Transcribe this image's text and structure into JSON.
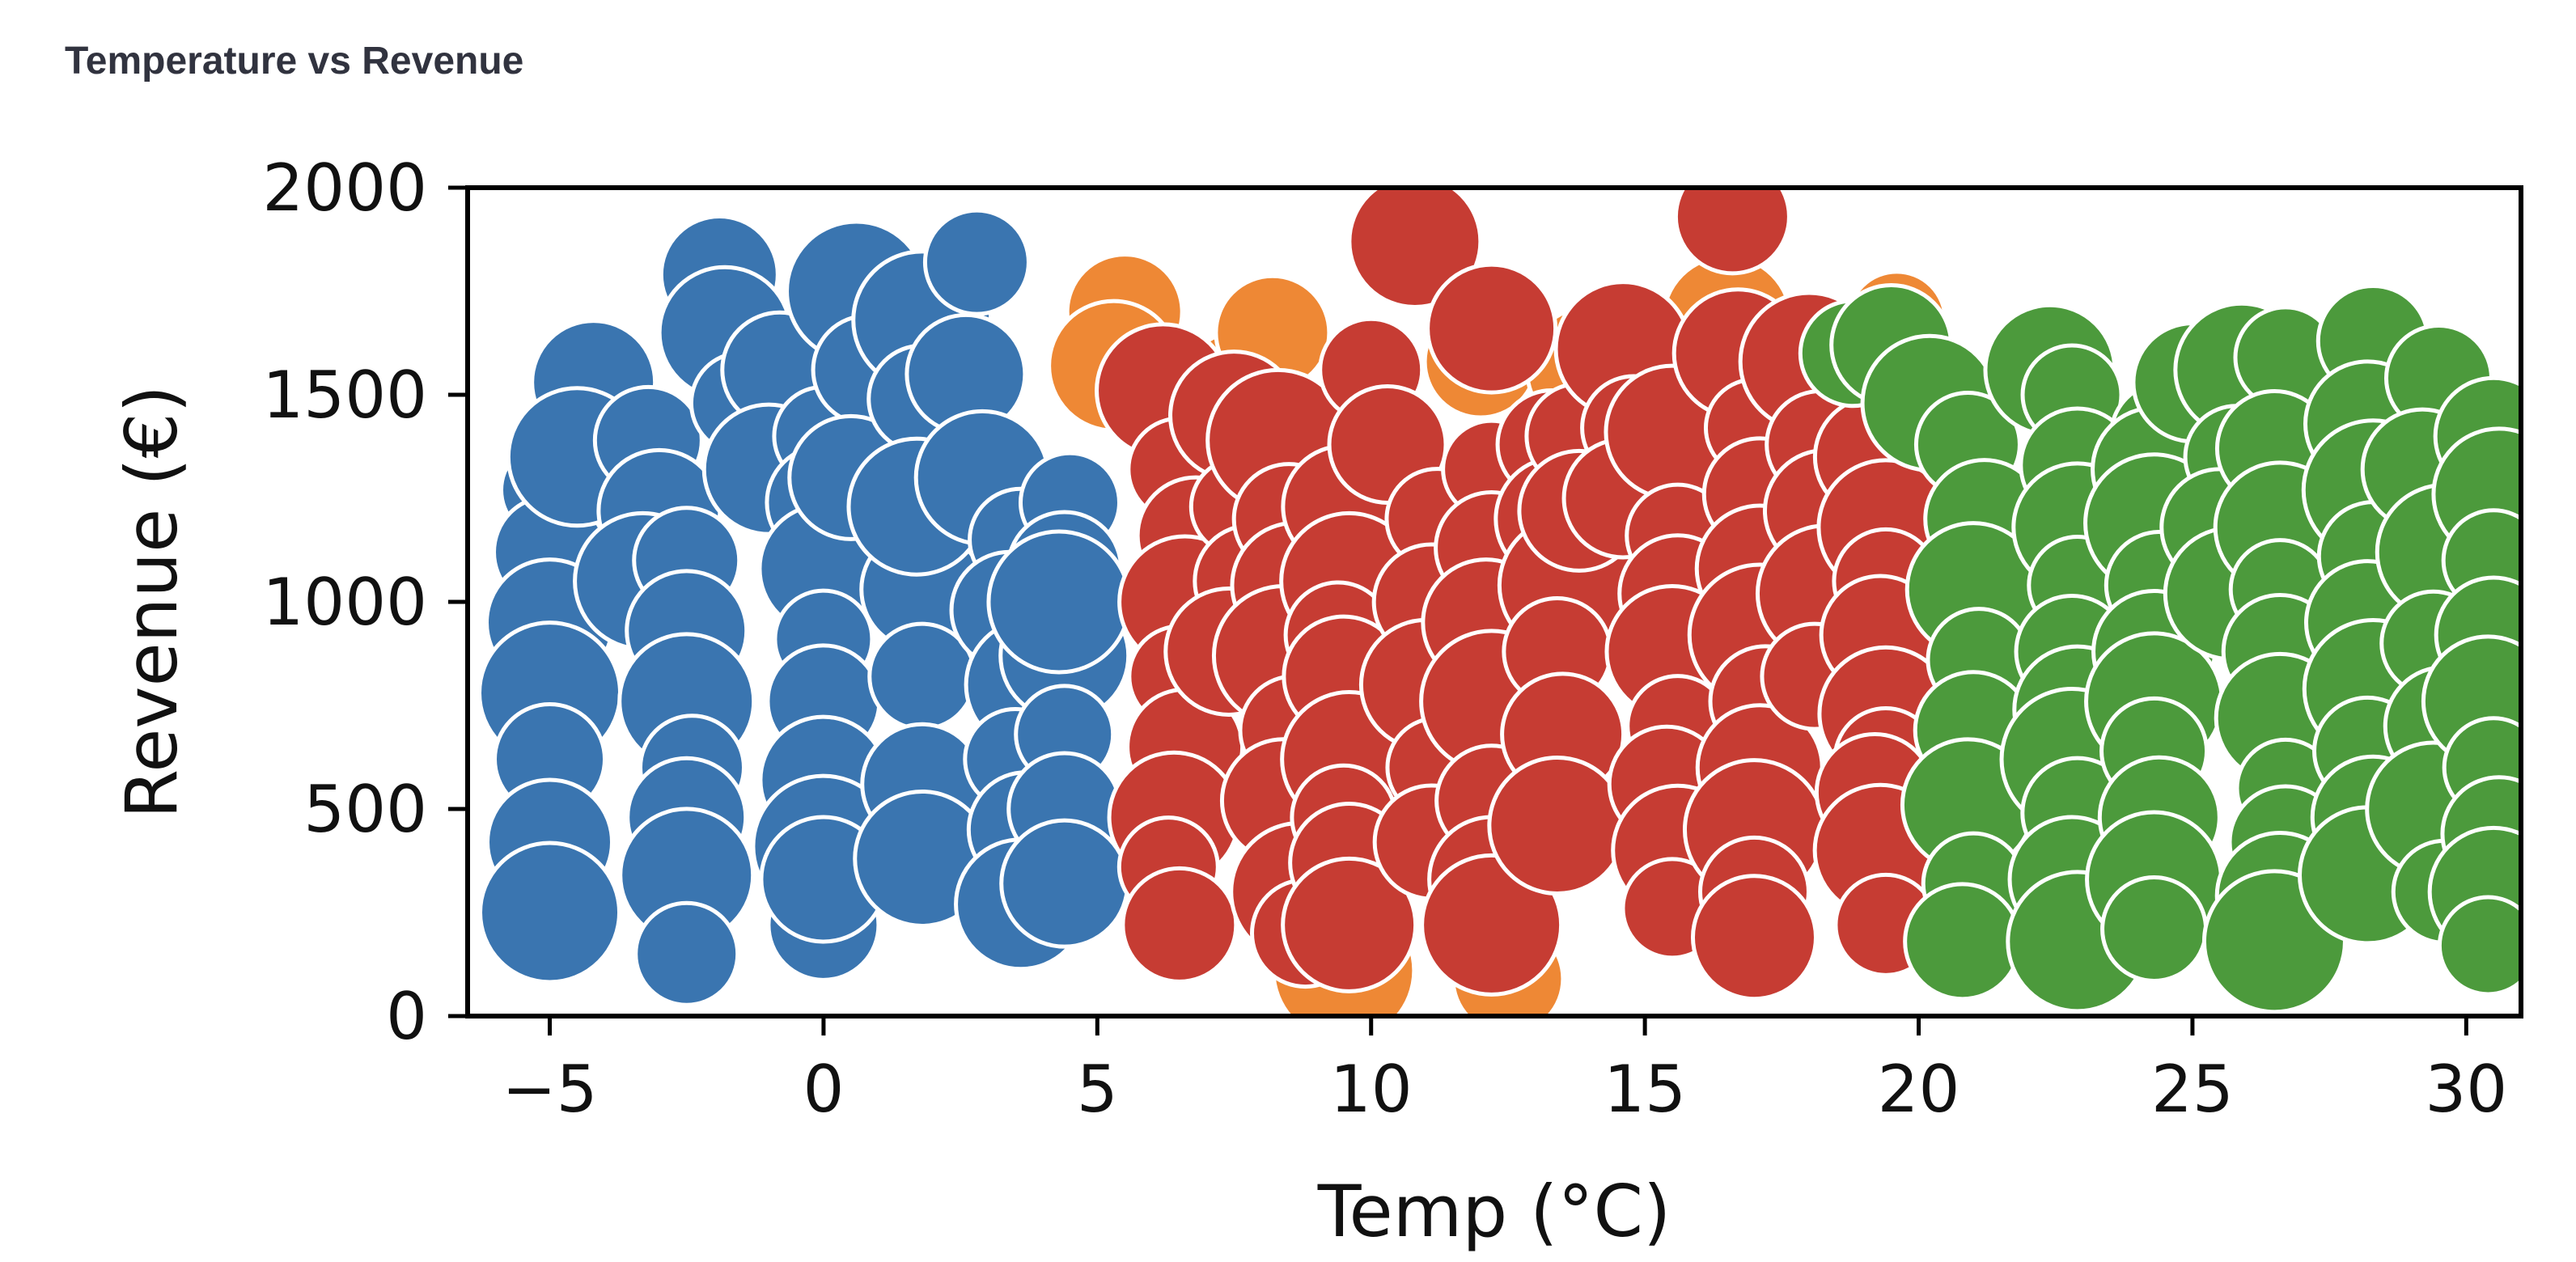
{
  "page": {
    "title": "Temperature vs Revenue"
  },
  "chart_data": {
    "type": "scatter",
    "title": "",
    "xlabel": "Temp (°C)",
    "ylabel": "Revenue (€)",
    "xlim": [
      -6.5,
      31
    ],
    "ylim": [
      0,
      2000
    ],
    "xticks": [
      -5,
      0,
      5,
      10,
      15,
      20,
      25,
      30
    ],
    "xtick_labels": [
      "−5",
      "0",
      "5",
      "10",
      "15",
      "20",
      "25",
      "30"
    ],
    "yticks": [
      0,
      500,
      1000,
      1500,
      2000
    ],
    "ytick_labels": [
      "0",
      "500",
      "1000",
      "1500",
      "2000"
    ],
    "grid": false,
    "legend": "none",
    "series": [
      {
        "color": "#3a75b0",
        "points": [
          [
            -5,
            1270
          ],
          [
            -5,
            1120
          ],
          [
            -5,
            950
          ],
          [
            -5,
            780
          ],
          [
            -5,
            620
          ],
          [
            -5,
            420
          ],
          [
            -5,
            250
          ],
          [
            -4.3,
            1430
          ],
          [
            -4.2,
            1530
          ],
          [
            -4.5,
            1350
          ],
          [
            -3.2,
            1390
          ],
          [
            -3,
            1220
          ],
          [
            -3.3,
            1050
          ],
          [
            -2.5,
            1100
          ],
          [
            -2.5,
            930
          ],
          [
            -2.5,
            760
          ],
          [
            -2.4,
            600
          ],
          [
            -2.5,
            480
          ],
          [
            -2.5,
            340
          ],
          [
            -2.5,
            150
          ],
          [
            -1.9,
            1790
          ],
          [
            -1.8,
            1650
          ],
          [
            -1.5,
            1480
          ],
          [
            -0.8,
            1560
          ],
          [
            -1,
            1320
          ],
          [
            0,
            1400
          ],
          [
            0,
            1240
          ],
          [
            0,
            1080
          ],
          [
            0,
            910
          ],
          [
            0,
            760
          ],
          [
            0,
            570
          ],
          [
            0,
            410
          ],
          [
            0,
            220
          ],
          [
            0,
            330
          ],
          [
            0.6,
            1750
          ],
          [
            0.8,
            1560
          ],
          [
            0.5,
            1300
          ],
          [
            1.8,
            1680
          ],
          [
            1.8,
            1490
          ],
          [
            1.8,
            1030
          ],
          [
            1.7,
            1230
          ],
          [
            1.8,
            820
          ],
          [
            1.8,
            560
          ],
          [
            1.8,
            380
          ],
          [
            2.8,
            1820
          ],
          [
            2.6,
            1550
          ],
          [
            2.9,
            1300
          ],
          [
            3.6,
            1150
          ],
          [
            3.4,
            980
          ],
          [
            3.8,
            800
          ],
          [
            3.5,
            620
          ],
          [
            3.7,
            450
          ],
          [
            3.6,
            270
          ],
          [
            4.5,
            1240
          ],
          [
            4.4,
            1080
          ],
          [
            4.4,
            870
          ],
          [
            4.4,
            680
          ],
          [
            4.4,
            500
          ],
          [
            4.4,
            320
          ],
          [
            4.3,
            1000
          ]
        ]
      },
      {
        "color": "#ee8835",
        "points": [
          [
            5.5,
            1700
          ],
          [
            5.3,
            1570
          ],
          [
            7.5,
            1530
          ],
          [
            8.2,
            1650
          ],
          [
            16.5,
            1680
          ],
          [
            19.6,
            1680
          ],
          [
            12,
            1580
          ],
          [
            14,
            1560
          ],
          [
            9.5,
            110
          ],
          [
            12.5,
            90
          ]
        ]
      },
      {
        "color": "#c63c33",
        "points": [
          [
            6.2,
            1510
          ],
          [
            6.5,
            1320
          ],
          [
            6.8,
            1160
          ],
          [
            6.6,
            1000
          ],
          [
            6.5,
            820
          ],
          [
            6.6,
            650
          ],
          [
            6.4,
            480
          ],
          [
            6.3,
            360
          ],
          [
            6.5,
            220
          ],
          [
            7.5,
            1450
          ],
          [
            7.6,
            1230
          ],
          [
            7.8,
            1050
          ],
          [
            7.4,
            880
          ],
          [
            8.3,
            1390
          ],
          [
            8.5,
            1200
          ],
          [
            8.6,
            1040
          ],
          [
            8.4,
            870
          ],
          [
            8.6,
            690
          ],
          [
            8.4,
            520
          ],
          [
            8.7,
            300
          ],
          [
            8.8,
            200
          ],
          [
            9.5,
            1230
          ],
          [
            9.6,
            1050
          ],
          [
            9.4,
            920
          ],
          [
            9.5,
            820
          ],
          [
            9.6,
            620
          ],
          [
            9.5,
            480
          ],
          [
            9.6,
            370
          ],
          [
            9.6,
            220
          ],
          [
            10,
            1560
          ],
          [
            10.3,
            1380
          ],
          [
            10.8,
            1870
          ],
          [
            11.2,
            1200
          ],
          [
            11.1,
            1000
          ],
          [
            11,
            800
          ],
          [
            11.2,
            600
          ],
          [
            11.1,
            420
          ],
          [
            12.2,
            1660
          ],
          [
            12.2,
            1320
          ],
          [
            12.2,
            1130
          ],
          [
            12.1,
            950
          ],
          [
            12.2,
            760
          ],
          [
            12.2,
            520
          ],
          [
            12.2,
            330
          ],
          [
            12.2,
            220
          ],
          [
            13.3,
            1380
          ],
          [
            13.4,
            1200
          ],
          [
            13.6,
            1040
          ],
          [
            13.4,
            880
          ],
          [
            13.5,
            680
          ],
          [
            13.4,
            460
          ],
          [
            13.8,
            1400
          ],
          [
            13.8,
            1220
          ],
          [
            14.6,
            1610
          ],
          [
            14.8,
            1420
          ],
          [
            14.6,
            1250
          ],
          [
            15.5,
            1410
          ],
          [
            15.6,
            1160
          ],
          [
            15.6,
            1020
          ],
          [
            15.5,
            880
          ],
          [
            15.6,
            700
          ],
          [
            15.4,
            560
          ],
          [
            15.6,
            400
          ],
          [
            15.5,
            260
          ],
          [
            16.6,
            1930
          ],
          [
            16.7,
            1600
          ],
          [
            17,
            1420
          ],
          [
            17.1,
            1260
          ],
          [
            17.1,
            1080
          ],
          [
            17.1,
            920
          ],
          [
            17.2,
            760
          ],
          [
            17.1,
            600
          ],
          [
            17,
            450
          ],
          [
            17,
            300
          ],
          [
            17,
            190
          ],
          [
            18,
            1580
          ],
          [
            18.2,
            1380
          ],
          [
            18.3,
            1220
          ],
          [
            18.3,
            1020
          ],
          [
            18.1,
            820
          ],
          [
            19.2,
            1350
          ],
          [
            19.4,
            1180
          ],
          [
            19.4,
            1050
          ],
          [
            19.3,
            920
          ],
          [
            19.4,
            730
          ],
          [
            19.4,
            620
          ],
          [
            19.2,
            540
          ],
          [
            19.3,
            400
          ],
          [
            19.4,
            220
          ]
        ]
      },
      {
        "color": "#4c9a3c",
        "points": [
          [
            18.8,
            1600
          ],
          [
            19.5,
            1620
          ],
          [
            20.2,
            1480
          ],
          [
            20.9,
            1380
          ],
          [
            21.2,
            1200
          ],
          [
            21.0,
            1030
          ],
          [
            21.1,
            860
          ],
          [
            21.0,
            690
          ],
          [
            20.9,
            510
          ],
          [
            21.0,
            320
          ],
          [
            20.8,
            180
          ],
          [
            22.4,
            1560
          ],
          [
            22.8,
            1500
          ],
          [
            22.9,
            1330
          ],
          [
            22.9,
            1180
          ],
          [
            22.9,
            1040
          ],
          [
            22.8,
            880
          ],
          [
            22.9,
            740
          ],
          [
            22.8,
            620
          ],
          [
            22.9,
            490
          ],
          [
            22.8,
            330
          ],
          [
            22.9,
            180
          ],
          [
            24.5,
            1400
          ],
          [
            24.3,
            1320
          ],
          [
            24.3,
            1190
          ],
          [
            24.4,
            1040
          ],
          [
            24.3,
            880
          ],
          [
            24.3,
            760
          ],
          [
            24.3,
            640
          ],
          [
            24.4,
            480
          ],
          [
            24.3,
            330
          ],
          [
            24.3,
            210
          ],
          [
            25,
            1530
          ],
          [
            25.9,
            1560
          ],
          [
            25.8,
            1350
          ],
          [
            25.5,
            1180
          ],
          [
            25.7,
            1020
          ],
          [
            26.7,
            1590
          ],
          [
            26.5,
            1370
          ],
          [
            26.6,
            1180
          ],
          [
            26.6,
            1030
          ],
          [
            26.6,
            880
          ],
          [
            26.6,
            720
          ],
          [
            26.7,
            550
          ],
          [
            26.7,
            420
          ],
          [
            26.6,
            290
          ],
          [
            26.5,
            180
          ],
          [
            28.3,
            1630
          ],
          [
            28.2,
            1430
          ],
          [
            28.3,
            1270
          ],
          [
            28.3,
            1110
          ],
          [
            28.2,
            950
          ],
          [
            28.3,
            790
          ],
          [
            28.2,
            640
          ],
          [
            28.3,
            480
          ],
          [
            28.2,
            340
          ],
          [
            29.5,
            1540
          ],
          [
            29.2,
            1320
          ],
          [
            29.6,
            1120
          ],
          [
            29.4,
            900
          ],
          [
            29.6,
            700
          ],
          [
            29.4,
            500
          ],
          [
            29.6,
            300
          ],
          [
            30.5,
            1400
          ],
          [
            30.6,
            1260
          ],
          [
            30.5,
            1100
          ],
          [
            30.5,
            920
          ],
          [
            30.4,
            760
          ],
          [
            30.5,
            600
          ],
          [
            30.6,
            440
          ],
          [
            30.5,
            300
          ],
          [
            30.4,
            170
          ]
        ]
      }
    ]
  }
}
